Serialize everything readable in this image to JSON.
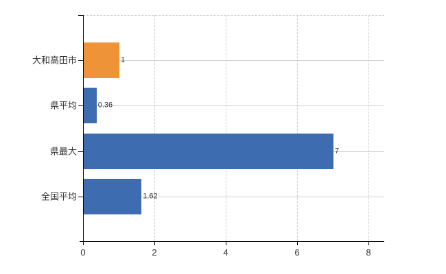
{
  "chart_data": {
    "type": "bar",
    "orientation": "horizontal",
    "title": "",
    "xlabel": "",
    "ylabel": "",
    "categories": [
      "大和高田市",
      "県平均",
      "県最大",
      "全国平均"
    ],
    "values": [
      1,
      0.36,
      7,
      1.62
    ],
    "value_labels": [
      "1",
      "0.36",
      "7",
      "1.62"
    ],
    "bar_colors": [
      "#ef9338",
      "#3d6db0",
      "#3d6db0",
      "#3d6db0"
    ],
    "highlight_color": "#ef9338",
    "default_bar_color": "#3d6db0",
    "x_ticks": [
      0,
      2,
      4,
      6,
      8
    ],
    "x_tick_labels": [
      "0",
      "2",
      "4",
      "6",
      "8"
    ],
    "xlim": [
      0,
      8.44
    ],
    "grid": {
      "vertical_dashed_gridlines": true,
      "top_border_dashed": true,
      "category_row_lines": true,
      "grid_color": "#cccccc"
    },
    "axis_color": "#000000",
    "text_color": "#333333",
    "background_color": "#ffffff",
    "legend": null
  }
}
